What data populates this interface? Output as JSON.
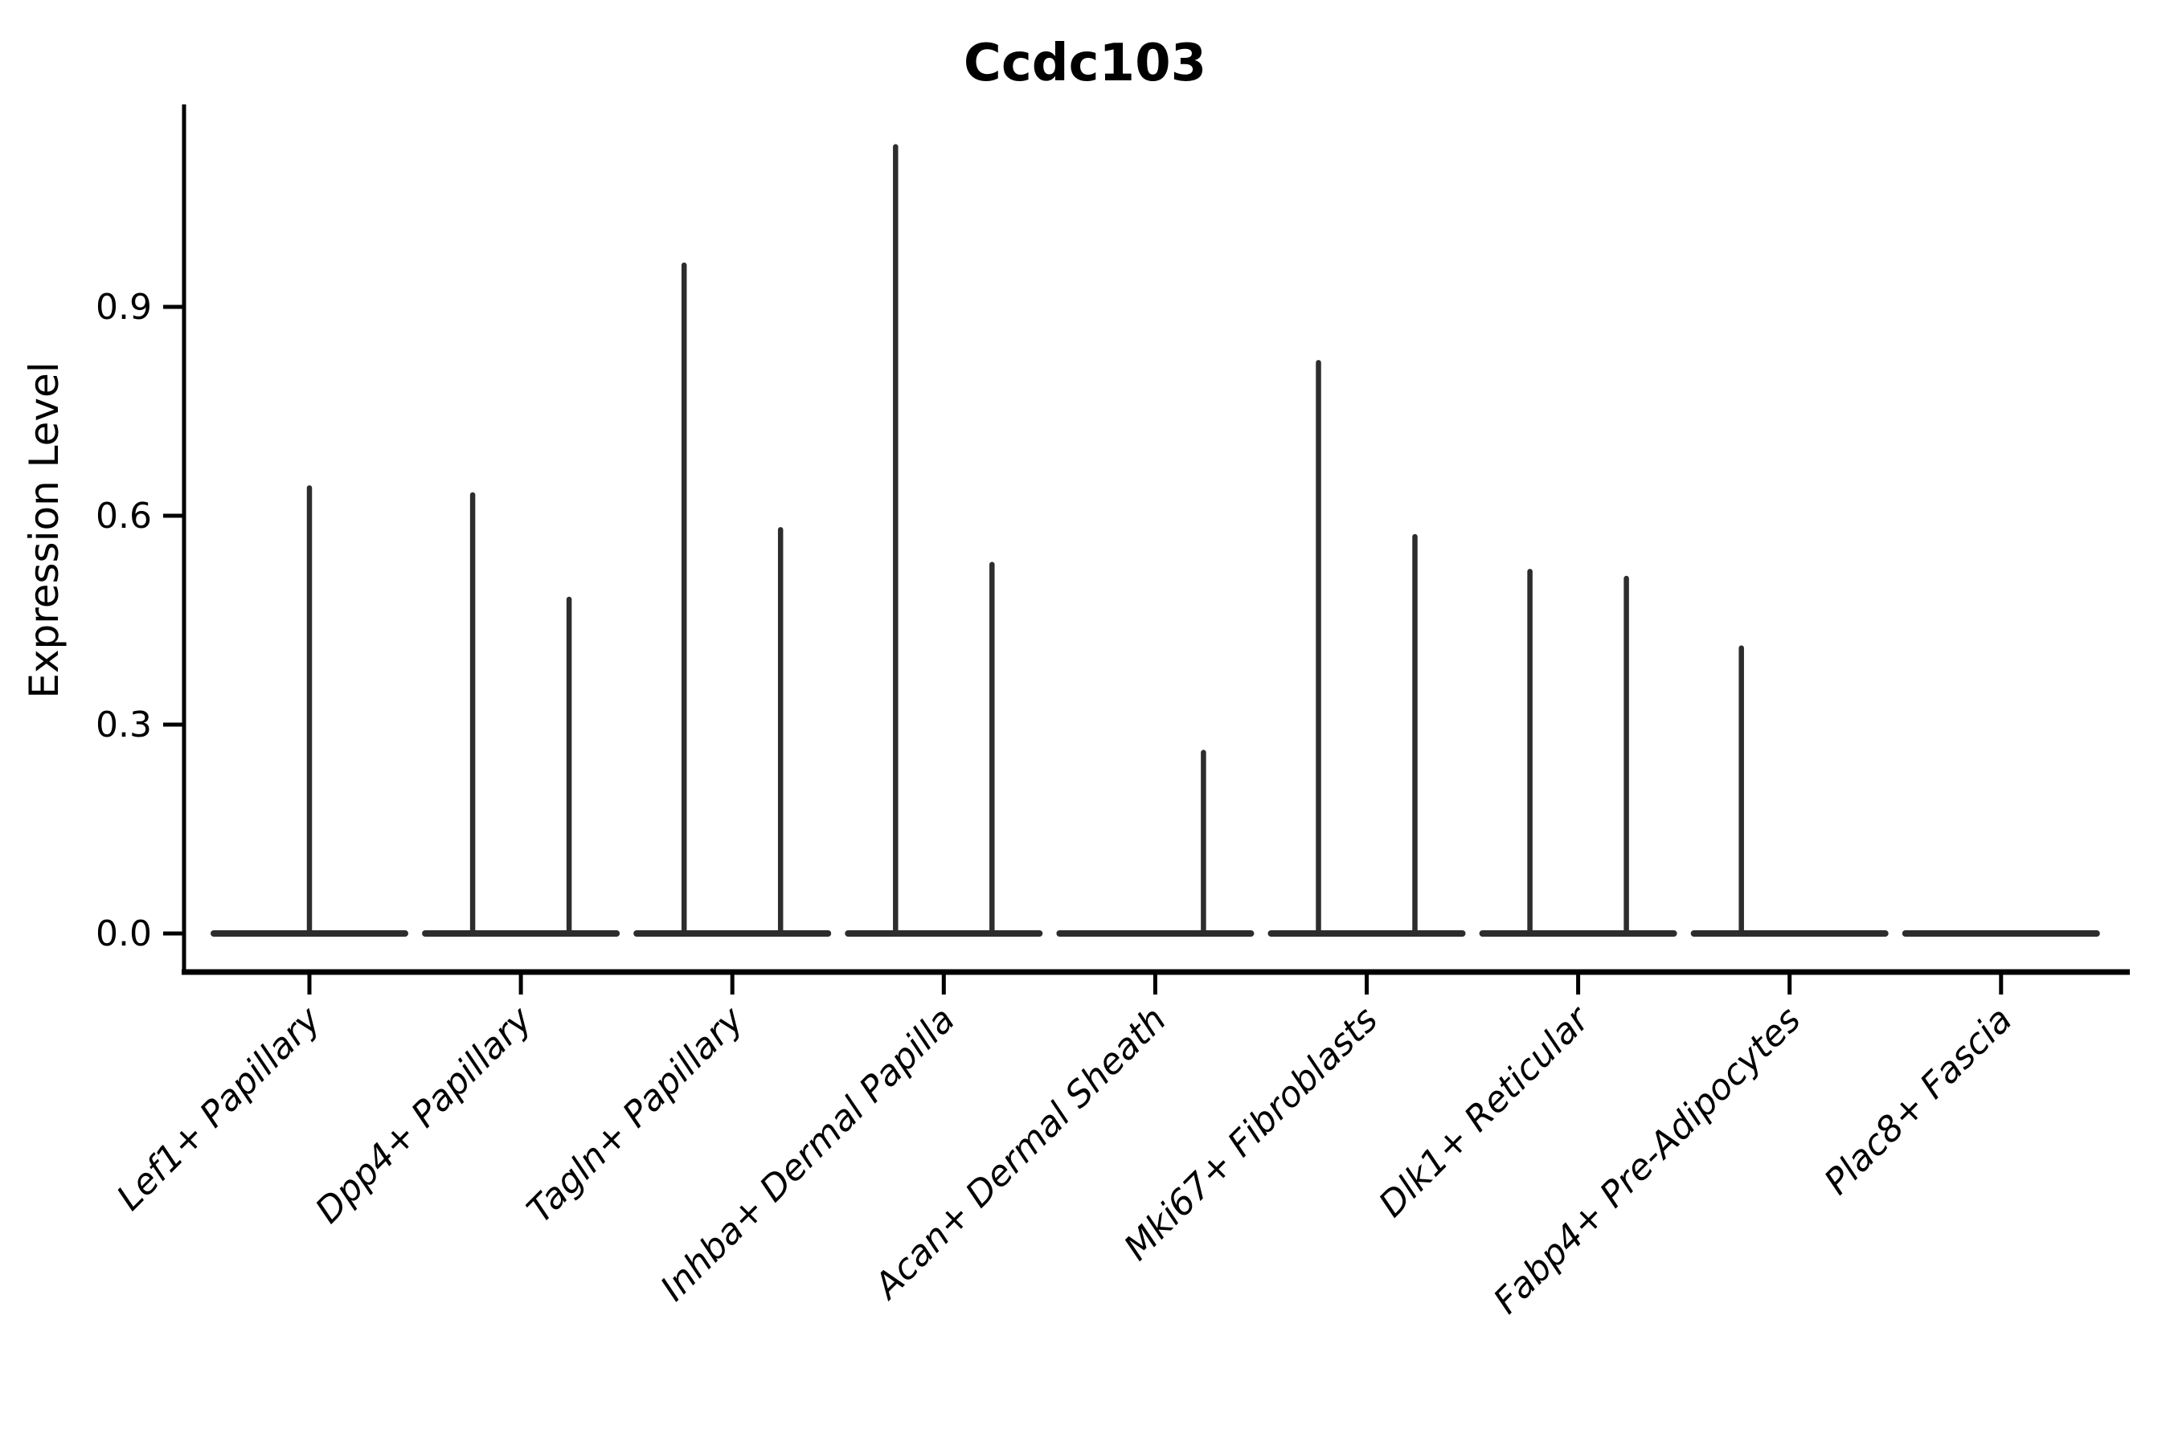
{
  "figure": {
    "title": "Ccdc103",
    "ylabel": "Expression Level"
  },
  "chart_data": {
    "type": "violin",
    "title": "Ccdc103",
    "xlabel": "",
    "ylabel": "Expression Level",
    "ylim": [
      0,
      1.19
    ],
    "yticks": [
      "0.0",
      "0.3",
      "0.6",
      "0.9"
    ],
    "grid": false,
    "legend": "none",
    "line_color": "#2d2d2d",
    "axis_color": "#000000",
    "note_shape": "Each violin collapses to a flat base at 0 with a thin needle spike at the sub-violin center reaching the max expression value",
    "categories": [
      {
        "label": "Lef1+ Papillary",
        "violins": [
          {
            "pos": "center",
            "max": 0.64
          }
        ]
      },
      {
        "label": "Dpp4+ Papillary",
        "violins": [
          {
            "pos": "left",
            "max": 0.63
          },
          {
            "pos": "right",
            "max": 0.48
          }
        ]
      },
      {
        "label": "Tagln+ Papillary",
        "violins": [
          {
            "pos": "left",
            "max": 0.96
          },
          {
            "pos": "right",
            "max": 0.58
          }
        ]
      },
      {
        "label": "Inhba+ Dermal Papilla",
        "violins": [
          {
            "pos": "left",
            "max": 1.13
          },
          {
            "pos": "right",
            "max": 0.53
          }
        ]
      },
      {
        "label": "Acan+ Dermal Sheath",
        "violins": [
          {
            "pos": "left",
            "max": 0.0
          },
          {
            "pos": "right",
            "max": 0.26
          }
        ]
      },
      {
        "label": "Mki67+ Fibroblasts",
        "violins": [
          {
            "pos": "left",
            "max": 0.82
          },
          {
            "pos": "right",
            "max": 0.57
          }
        ]
      },
      {
        "label": "Dlk1+ Reticular",
        "violins": [
          {
            "pos": "left",
            "max": 0.52
          },
          {
            "pos": "right",
            "max": 0.51
          }
        ]
      },
      {
        "label": "Fabp4+ Pre-Adipocytes",
        "violins": [
          {
            "pos": "left",
            "max": 0.41
          },
          {
            "pos": "right",
            "max": 0.0
          }
        ]
      },
      {
        "label": "Plac8+ Fascia",
        "violins": [
          {
            "pos": "left",
            "max": 0.0
          },
          {
            "pos": "right",
            "max": 0.0
          }
        ]
      }
    ]
  }
}
